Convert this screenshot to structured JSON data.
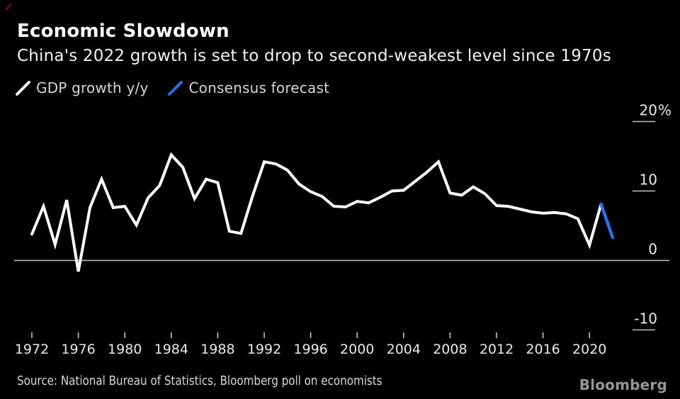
{
  "header": {
    "title": "Economic Slowdown",
    "subtitle": "China's 2022 growth is set to drop to second-weakest level since 1970s"
  },
  "legend": {
    "items": [
      {
        "label": "GDP growth y/y",
        "color": "#ffffff"
      },
      {
        "label": "Consensus forecast",
        "color": "#2172e8"
      }
    ]
  },
  "chart_data": {
    "type": "line",
    "title": "Economic Slowdown",
    "subtitle": "China's 2022 growth is set to drop to second-weakest level since 1970s",
    "xlabel": "",
    "ylabel": "",
    "unit": "%",
    "xlim": [
      1972,
      2022
    ],
    "ylim": [
      -13,
      22
    ],
    "grid": "zero-line-only",
    "legend_position": "top-left",
    "series": [
      {
        "name": "GDP growth y/y",
        "color": "#ffffff",
        "x": [
          1972,
          1973,
          1974,
          1975,
          1976,
          1977,
          1978,
          1979,
          1980,
          1981,
          1982,
          1983,
          1984,
          1985,
          1986,
          1987,
          1988,
          1989,
          1990,
          1991,
          1992,
          1993,
          1994,
          1995,
          1996,
          1997,
          1998,
          1999,
          2000,
          2001,
          2002,
          2003,
          2004,
          2005,
          2006,
          2007,
          2008,
          2009,
          2010,
          2011,
          2012,
          2013,
          2014,
          2015,
          2016,
          2017,
          2018,
          2019,
          2020,
          2021
        ],
        "values": [
          3.8,
          7.8,
          2.3,
          8.7,
          -1.6,
          7.6,
          11.7,
          7.6,
          7.8,
          5.1,
          9.0,
          10.8,
          15.2,
          13.4,
          8.9,
          11.7,
          11.2,
          4.2,
          3.9,
          9.3,
          14.2,
          13.9,
          13.0,
          11.0,
          9.9,
          9.2,
          7.8,
          7.7,
          8.5,
          8.3,
          9.1,
          10.0,
          10.1,
          11.4,
          12.7,
          14.2,
          9.7,
          9.4,
          10.6,
          9.6,
          7.9,
          7.8,
          7.4,
          7.0,
          6.8,
          6.9,
          6.7,
          6.0,
          2.2,
          8.1
        ]
      },
      {
        "name": "Consensus forecast",
        "color": "#2172e8",
        "x": [
          2021,
          2022
        ],
        "values": [
          8.1,
          3.3
        ]
      }
    ],
    "y_ticks": [
      {
        "label": "20",
        "suffix": "%",
        "value": 20
      },
      {
        "label": "10",
        "suffix": "",
        "value": 10
      },
      {
        "label": "0",
        "suffix": "",
        "value": 0
      },
      {
        "label": "-10",
        "suffix": "",
        "value": -10
      }
    ],
    "x_ticks": [
      1972,
      1976,
      1980,
      1984,
      1988,
      1992,
      1996,
      2000,
      2004,
      2008,
      2012,
      2016,
      2020
    ]
  },
  "footer": {
    "source": "Source: National Bureau of Statistics, Bloomberg poll on economists",
    "brand": "Bloomberg"
  }
}
